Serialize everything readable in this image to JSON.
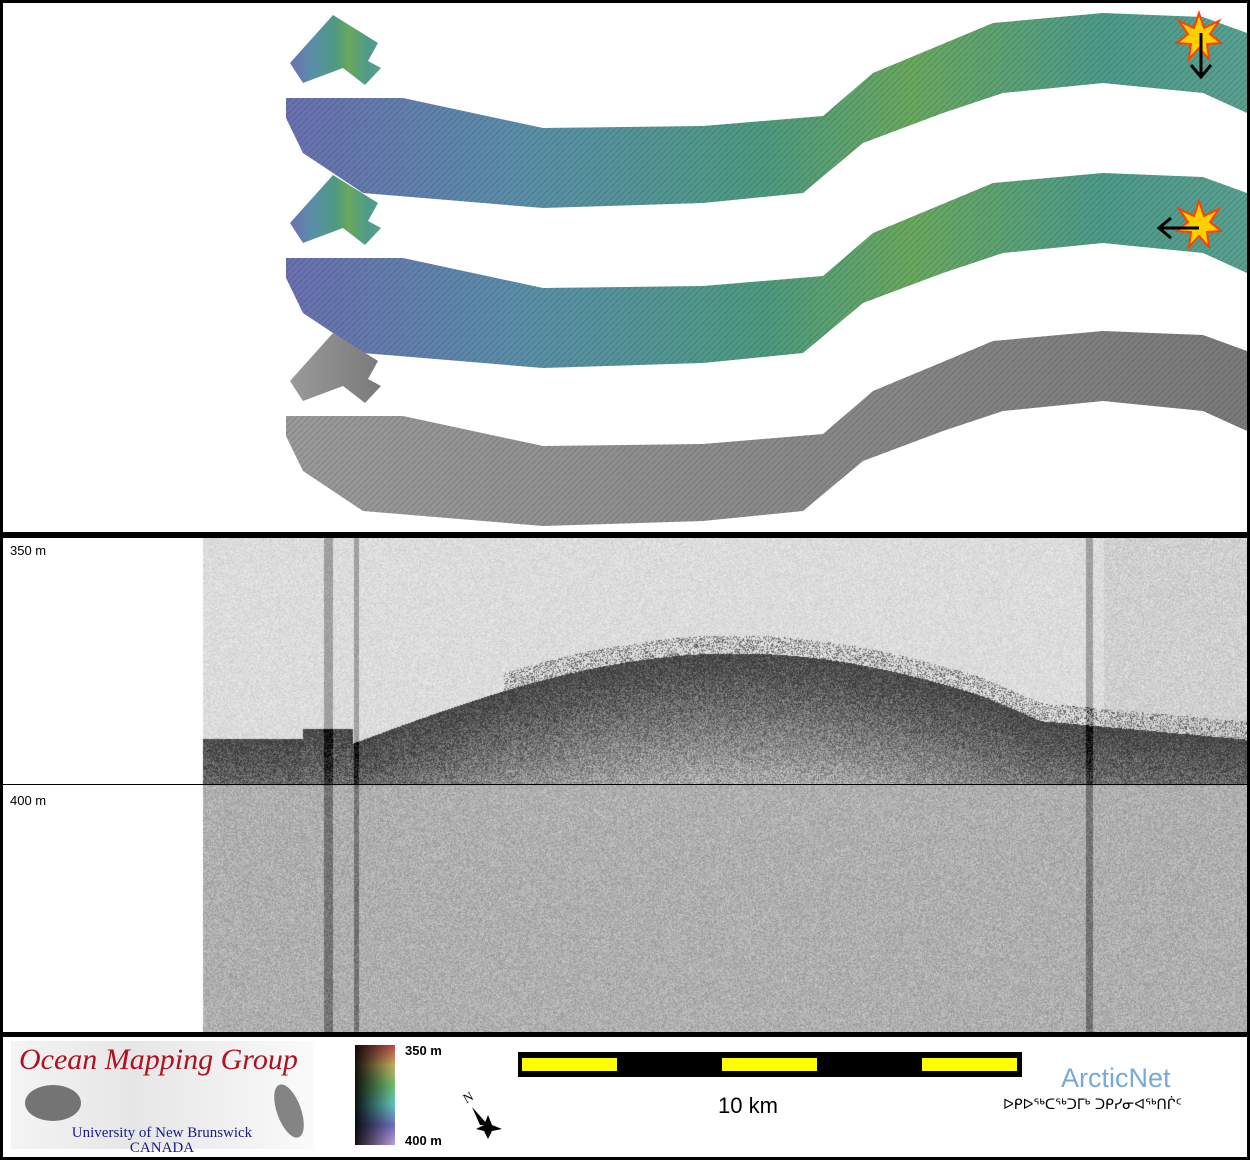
{
  "echogram": {
    "top_depth_label": "350 m",
    "mid_depth_label": "400 m"
  },
  "legend": {
    "logo_title": "Ocean Mapping Group",
    "logo_line1": "University of New Brunswick",
    "logo_line2": "CANADA",
    "colorbar_top": "350 m",
    "colorbar_bottom": "400 m",
    "north_label": "N",
    "scale_label": "10 km",
    "partner_name": "ArcticNet",
    "partner_syllabics": "ᐅᑭᐅᖅᑕᖅᑐᒥᒃ ᑐᑭᓯᓂᐊᖅᑎᒌᑦ"
  },
  "colors": {
    "scale_yellow": "#ffff00",
    "logo_red": "#b01020",
    "logo_blue": "#1a1a8a",
    "arcticnet_blue": "#7aa9d6"
  },
  "markers": [
    {
      "icon": "explosion-star-icon",
      "arrow": "down"
    },
    {
      "icon": "explosion-star-icon",
      "arrow": "left"
    }
  ]
}
